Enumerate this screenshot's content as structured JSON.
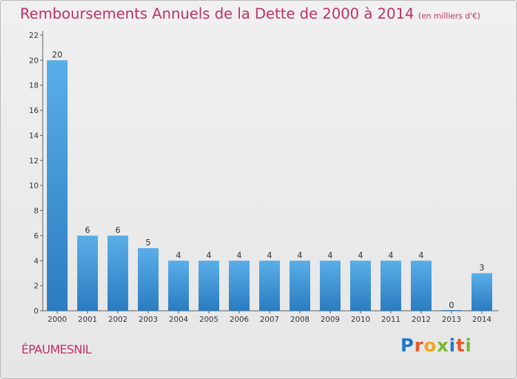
{
  "header": {
    "title": "Remboursements Annuels de la Dette de 2000 à 2014",
    "subtitle": "(en milliers d'€)"
  },
  "footer": {
    "commune": "ÉPAUMESNIL",
    "logo": [
      "P",
      "r",
      "o",
      "x",
      "i",
      "t",
      "i"
    ],
    "logo_colors": [
      "#1f77c8",
      "#e8562a",
      "#f3a51b",
      "#7ab833",
      "#1f77c8",
      "#e8562a",
      "#7ab833"
    ]
  },
  "chart_data": {
    "type": "bar",
    "categories": [
      "2000",
      "2001",
      "2002",
      "2003",
      "2004",
      "2005",
      "2006",
      "2007",
      "2008",
      "2009",
      "2010",
      "2011",
      "2012",
      "2013",
      "2014"
    ],
    "values": [
      20,
      6,
      6,
      5,
      4,
      4,
      4,
      4,
      4,
      4,
      4,
      4,
      4,
      0,
      3
    ],
    "value_labels": [
      "20",
      "6",
      "6",
      "5",
      "4",
      "4",
      "4",
      "4",
      "4",
      "4",
      "4",
      "4",
      "4",
      "0",
      "3"
    ],
    "y_ticks": [
      0,
      2,
      4,
      6,
      8,
      10,
      12,
      14,
      16,
      18,
      20,
      22
    ],
    "ylim": [
      0,
      22
    ],
    "title": "Remboursements Annuels de la Dette de 2000 à 2014",
    "xlabel": "",
    "ylabel": "",
    "grid": false,
    "colors": {
      "bar_light": "#5aaee8",
      "bar_dark": "#2a7cc0",
      "axis": "#555555"
    }
  }
}
